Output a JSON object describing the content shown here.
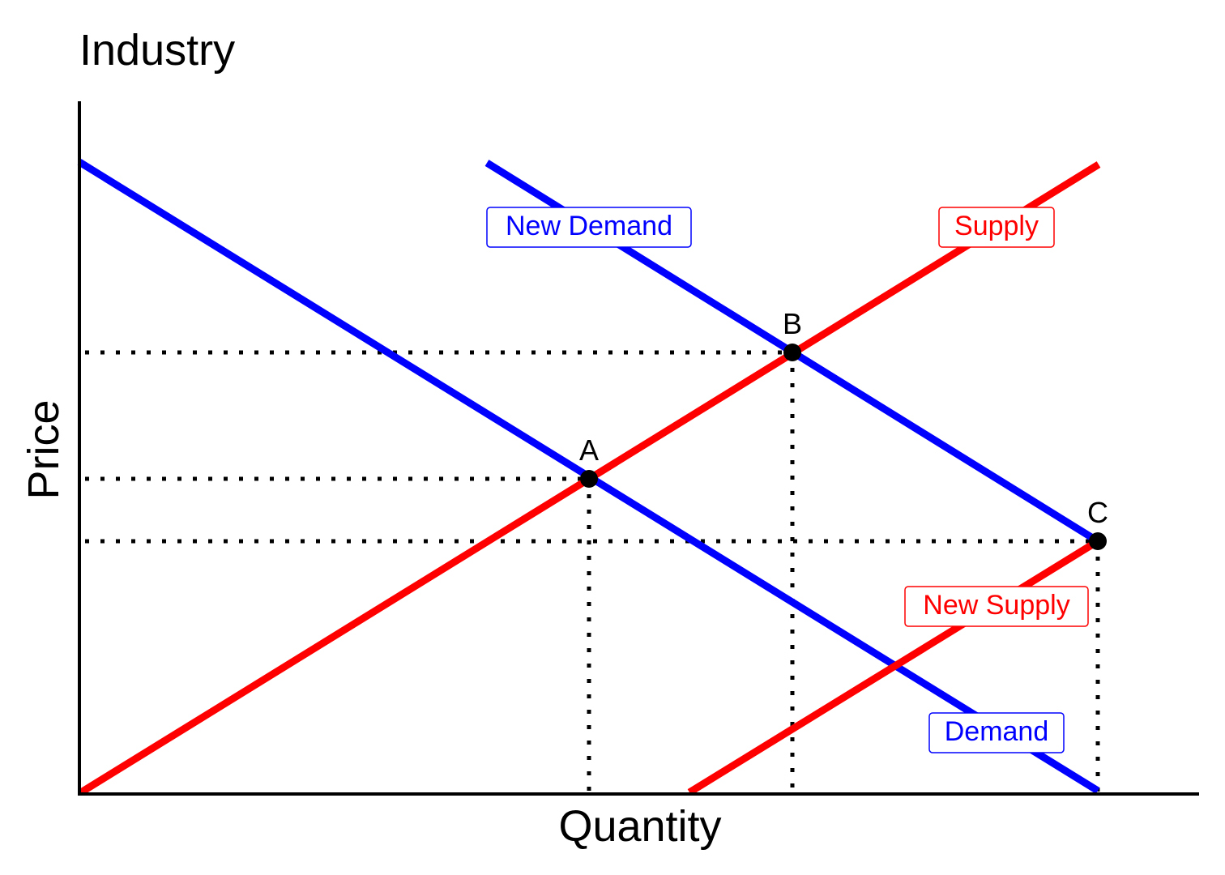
{
  "header": {
    "title": "Industry"
  },
  "axes": {
    "y_label": "Price",
    "x_label": "Quantity"
  },
  "curves": [
    {
      "label": "New Demand"
    },
    {
      "label": "Supply"
    },
    {
      "label": "New Supply"
    },
    {
      "label": "Demand"
    }
  ],
  "points": [
    {
      "label": "A"
    },
    {
      "label": "B"
    },
    {
      "label": "C"
    }
  ]
}
